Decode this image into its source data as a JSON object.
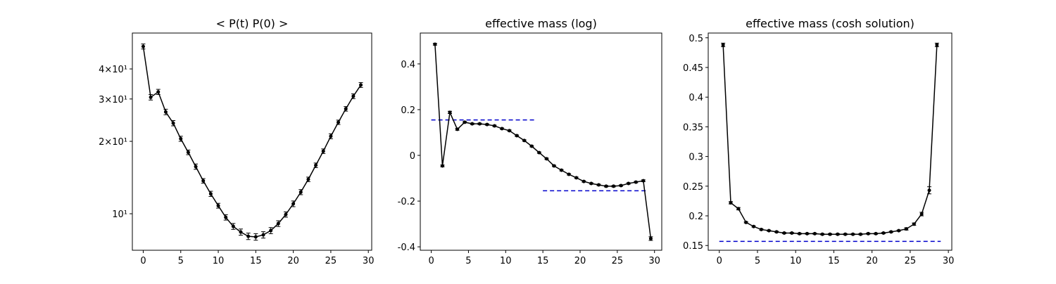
{
  "chart_data": [
    {
      "type": "line",
      "title": "< P(t)  P(0) >",
      "log_y": true,
      "color": "#000000",
      "x": [
        0,
        1,
        2,
        3,
        4,
        5,
        6,
        7,
        8,
        9,
        10,
        11,
        12,
        13,
        14,
        15,
        16,
        17,
        18,
        19,
        20,
        21,
        22,
        23,
        24,
        25,
        26,
        27,
        28,
        29
      ],
      "values": [
        49.6,
        30.5,
        32.1,
        26.5,
        23.8,
        20.5,
        18.0,
        15.7,
        13.7,
        12.1,
        10.8,
        9.66,
        8.86,
        8.39,
        8.06,
        8.01,
        8.17,
        8.51,
        9.1,
        9.93,
        11.0,
        12.3,
        13.9,
        15.9,
        18.2,
        21.0,
        24.0,
        27.3,
        30.8,
        34.3
      ],
      "errors": [
        1.2,
        0.8,
        0.8,
        0.7,
        0.6,
        0.5,
        0.4,
        0.4,
        0.3,
        0.3,
        0.25,
        0.25,
        0.25,
        0.25,
        0.25,
        0.25,
        0.25,
        0.25,
        0.25,
        0.25,
        0.3,
        0.3,
        0.3,
        0.35,
        0.4,
        0.5,
        0.5,
        0.6,
        0.7,
        0.8
      ],
      "xlim": [
        -1.45,
        30.45
      ],
      "xticks": [
        0,
        5,
        10,
        15,
        20,
        25,
        30
      ],
      "ylim": [
        7.05,
        56.4
      ],
      "yticks": [
        {
          "value": 10,
          "label": "10¹"
        },
        {
          "value": 20,
          "label": "2×10¹"
        },
        {
          "value": 30,
          "label": "3×10¹"
        },
        {
          "value": 40,
          "label": "4×10¹"
        }
      ]
    },
    {
      "type": "line",
      "title": "effective mass (log)",
      "color": "#000000",
      "x": [
        0.5,
        1.5,
        2.5,
        3.5,
        4.5,
        5.5,
        6.5,
        7.5,
        8.5,
        9.5,
        10.5,
        11.5,
        12.5,
        13.5,
        14.5,
        15.5,
        16.5,
        17.5,
        18.5,
        19.5,
        20.5,
        21.5,
        22.5,
        23.5,
        24.5,
        25.5,
        26.5,
        27.5,
        28.5,
        29.5
      ],
      "values": [
        0.486,
        -0.046,
        0.188,
        0.114,
        0.145,
        0.138,
        0.138,
        0.135,
        0.129,
        0.117,
        0.108,
        0.086,
        0.065,
        0.04,
        0.012,
        -0.015,
        -0.046,
        -0.065,
        -0.083,
        -0.098,
        -0.114,
        -0.123,
        -0.129,
        -0.135,
        -0.135,
        -0.132,
        -0.123,
        -0.117,
        -0.111,
        -0.364
      ],
      "errors": [
        0.004,
        0.004,
        0.005,
        0.004,
        0.003,
        0.003,
        0.003,
        0.003,
        0.003,
        0.003,
        0.003,
        0.003,
        0.003,
        0.003,
        0.003,
        0.003,
        0.003,
        0.003,
        0.003,
        0.003,
        0.003,
        0.003,
        0.003,
        0.003,
        0.003,
        0.003,
        0.003,
        0.003,
        0.004,
        0.008
      ],
      "hlines": [
        {
          "y": 0.155,
          "xmin": 0,
          "xmax": 14,
          "color": "#0000cc"
        },
        {
          "y": -0.155,
          "xmin": 15,
          "xmax": 29,
          "color": "#0000cc"
        }
      ],
      "xlim": [
        -1.475,
        30.975
      ],
      "xticks": [
        0,
        5,
        10,
        15,
        20,
        25,
        30
      ],
      "ylim": [
        -0.415,
        0.535
      ],
      "yticks": [
        -0.4,
        -0.2,
        0.0,
        0.2,
        0.4
      ]
    },
    {
      "type": "line",
      "title": "effective mass (cosh solution)",
      "color": "#000000",
      "x": [
        0.5,
        1.5,
        2.5,
        3.5,
        4.5,
        5.5,
        6.5,
        7.5,
        8.5,
        9.5,
        10.5,
        11.5,
        12.5,
        13.5,
        14.5,
        15.5,
        16.5,
        17.5,
        18.5,
        19.5,
        20.5,
        21.5,
        22.5,
        23.5,
        24.5,
        25.5,
        26.5,
        27.5,
        28.5
      ],
      "values": [
        0.488,
        0.222,
        0.212,
        0.189,
        0.182,
        0.177,
        0.175,
        0.173,
        0.171,
        0.171,
        0.17,
        0.17,
        0.17,
        0.169,
        0.169,
        0.169,
        0.169,
        0.169,
        0.169,
        0.17,
        0.17,
        0.171,
        0.173,
        0.175,
        0.178,
        0.186,
        0.203,
        0.243,
        0.488
      ],
      "errors": [
        0.003,
        0.002,
        0.002,
        0.001,
        0.001,
        0.001,
        0.001,
        0.001,
        0.001,
        0.001,
        0.001,
        0.001,
        0.001,
        0.001,
        0.001,
        0.001,
        0.001,
        0.001,
        0.001,
        0.001,
        0.001,
        0.001,
        0.001,
        0.001,
        0.002,
        0.002,
        0.003,
        0.006,
        0.003
      ],
      "hlines": [
        {
          "y": 0.157,
          "xmin": 0,
          "xmax": 29,
          "color": "#0000cc"
        }
      ],
      "xlim": [
        -1.45,
        30.45
      ],
      "xticks": [
        0,
        5,
        10,
        15,
        20,
        25,
        30
      ],
      "ylim": [
        0.142,
        0.508
      ],
      "yticks": [
        0.15,
        0.2,
        0.25,
        0.3,
        0.35,
        0.4,
        0.45,
        0.5
      ]
    }
  ]
}
